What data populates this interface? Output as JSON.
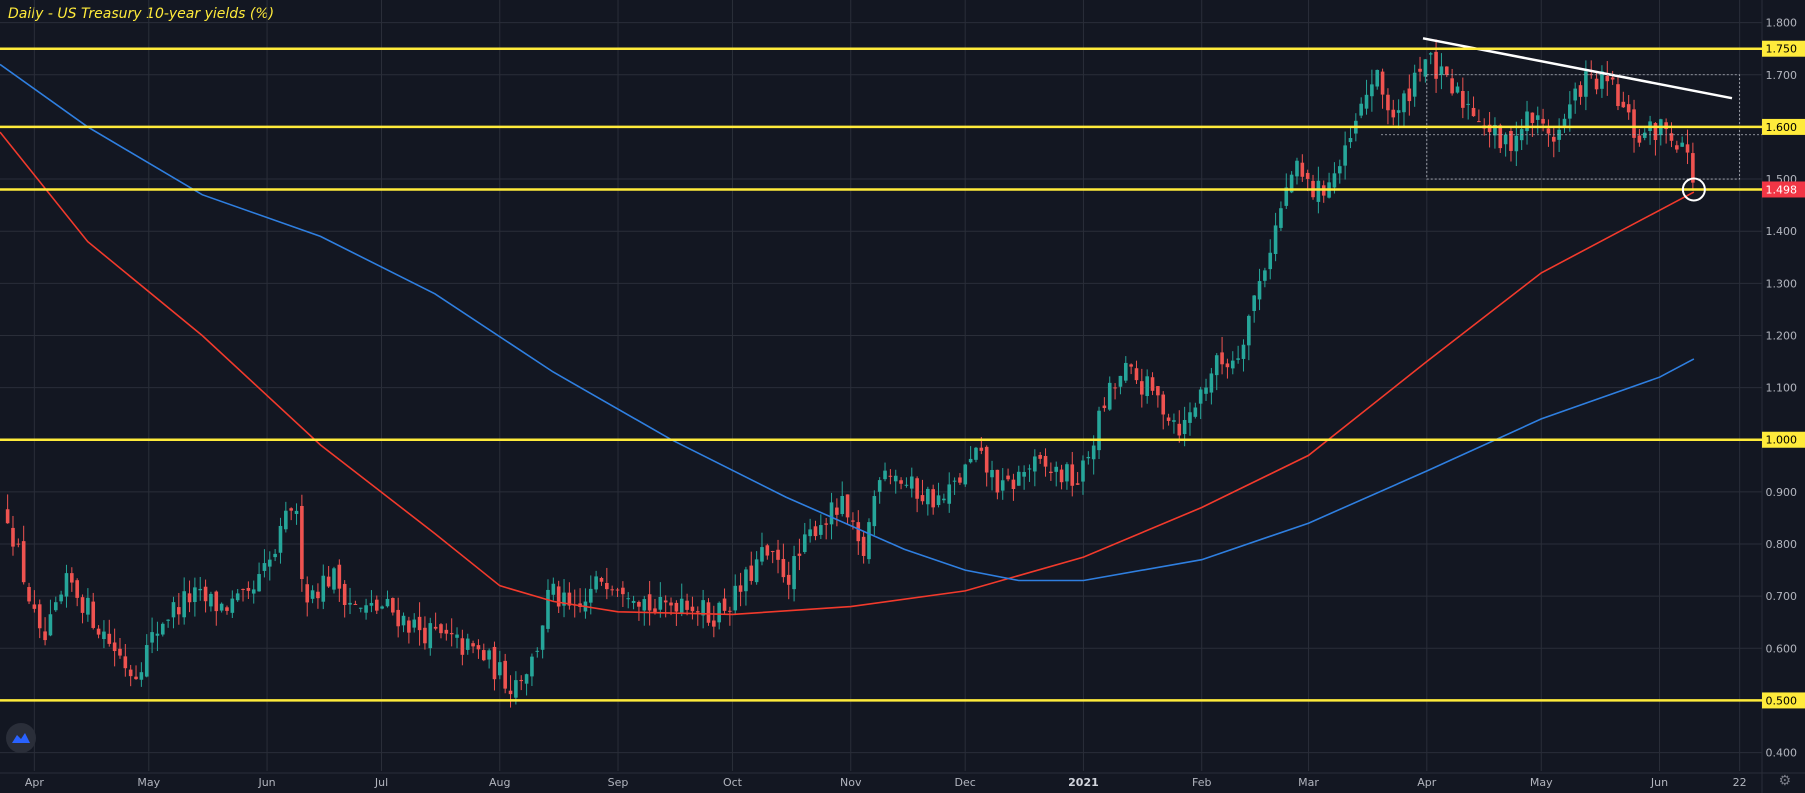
{
  "chart_data": {
    "type": "candlestick",
    "title": "Daily - US Treasury 10-year yields (%)",
    "ylim": [
      0.38,
      1.83
    ],
    "y_ticks": [
      0.4,
      0.5,
      0.6,
      0.7,
      0.8,
      0.9,
      1.0,
      1.1,
      1.2,
      1.3,
      1.4,
      1.5,
      1.6,
      1.7,
      1.8
    ],
    "y_tick_labels": [
      "0.400",
      "0.500",
      "0.600",
      "0.700",
      "0.800",
      "0.900",
      "1.000",
      "1.100",
      "1.200",
      "1.300",
      "1.400",
      "1.500",
      "1.600",
      "1.700",
      "1.800"
    ],
    "x_ticks": [
      "Apr",
      "May",
      "Jun",
      "Jul",
      "Aug",
      "Sep",
      "Oct",
      "Nov",
      "Dec",
      "2021",
      "Feb",
      "Mar",
      "Apr",
      "May",
      "Jun",
      "22"
    ],
    "x_tick_bold": [
      false,
      false,
      false,
      false,
      false,
      false,
      false,
      false,
      false,
      true,
      false,
      false,
      false,
      false,
      false,
      false
    ],
    "horizontal_levels": [
      {
        "value": 1.75,
        "label": "1.750"
      },
      {
        "value": 1.6,
        "label": "1.600"
      },
      {
        "value": 1.0,
        "label": "1.000"
      },
      {
        "value": 0.5,
        "label": "0.500"
      },
      {
        "value": 1.48,
        "label": ""
      }
    ],
    "last_price": {
      "value": 1.498,
      "label": "1.498"
    },
    "colors": {
      "background": "#131722",
      "grid": "#2a2e39",
      "level": "#ffeb3b",
      "up": "#26a69a",
      "down": "#ef5350",
      "ma_red": "#f23a2c",
      "ma_blue": "#2f7fe0",
      "trendline": "#ffffff",
      "last_price_tag": "#f23645"
    },
    "close_series": [
      {
        "date": "2020-03-25",
        "v": 0.86
      },
      {
        "date": "2020-04-03",
        "v": 0.6
      },
      {
        "date": "2020-04-10",
        "v": 0.73
      },
      {
        "date": "2020-04-20",
        "v": 0.62
      },
      {
        "date": "2020-04-27",
        "v": 0.55
      },
      {
        "date": "2020-05-05",
        "v": 0.66
      },
      {
        "date": "2020-05-12",
        "v": 0.7
      },
      {
        "date": "2020-05-20",
        "v": 0.68
      },
      {
        "date": "2020-05-27",
        "v": 0.69
      },
      {
        "date": "2020-06-03",
        "v": 0.78
      },
      {
        "date": "2020-06-08",
        "v": 0.89
      },
      {
        "date": "2020-06-11",
        "v": 0.7
      },
      {
        "date": "2020-06-18",
        "v": 0.74
      },
      {
        "date": "2020-06-25",
        "v": 0.67
      },
      {
        "date": "2020-07-02",
        "v": 0.68
      },
      {
        "date": "2020-07-10",
        "v": 0.64
      },
      {
        "date": "2020-07-20",
        "v": 0.61
      },
      {
        "date": "2020-07-27",
        "v": 0.59
      },
      {
        "date": "2020-08-04",
        "v": 0.53
      },
      {
        "date": "2020-08-10",
        "v": 0.58
      },
      {
        "date": "2020-08-14",
        "v": 0.71
      },
      {
        "date": "2020-08-21",
        "v": 0.66
      },
      {
        "date": "2020-08-28",
        "v": 0.74
      },
      {
        "date": "2020-09-04",
        "v": 0.72
      },
      {
        "date": "2020-09-11",
        "v": 0.67
      },
      {
        "date": "2020-09-18",
        "v": 0.7
      },
      {
        "date": "2020-09-25",
        "v": 0.66
      },
      {
        "date": "2020-10-02",
        "v": 0.7
      },
      {
        "date": "2020-10-09",
        "v": 0.78
      },
      {
        "date": "2020-10-16",
        "v": 0.74
      },
      {
        "date": "2020-10-23",
        "v": 0.84
      },
      {
        "date": "2020-10-30",
        "v": 0.87
      },
      {
        "date": "2020-11-04",
        "v": 0.77
      },
      {
        "date": "2020-11-09",
        "v": 0.96
      },
      {
        "date": "2020-11-16",
        "v": 0.91
      },
      {
        "date": "2020-11-25",
        "v": 0.88
      },
      {
        "date": "2020-12-04",
        "v": 0.97
      },
      {
        "date": "2020-12-11",
        "v": 0.9
      },
      {
        "date": "2020-12-18",
        "v": 0.95
      },
      {
        "date": "2020-12-24",
        "v": 0.94
      },
      {
        "date": "2020-12-31",
        "v": 0.92
      },
      {
        "date": "2021-01-07",
        "v": 1.08
      },
      {
        "date": "2021-01-12",
        "v": 1.13
      },
      {
        "date": "2021-01-19",
        "v": 1.09
      },
      {
        "date": "2021-01-27",
        "v": 1.02
      },
      {
        "date": "2021-02-04",
        "v": 1.14
      },
      {
        "date": "2021-02-10",
        "v": 1.16
      },
      {
        "date": "2021-02-16",
        "v": 1.3
      },
      {
        "date": "2021-02-25",
        "v": 1.52
      },
      {
        "date": "2021-03-03",
        "v": 1.47
      },
      {
        "date": "2021-03-10",
        "v": 1.53
      },
      {
        "date": "2021-03-18",
        "v": 1.7
      },
      {
        "date": "2021-03-24",
        "v": 1.61
      },
      {
        "date": "2021-03-31",
        "v": 1.74
      },
      {
        "date": "2021-04-07",
        "v": 1.67
      },
      {
        "date": "2021-04-14",
        "v": 1.63
      },
      {
        "date": "2021-04-21",
        "v": 1.56
      },
      {
        "date": "2021-04-28",
        "v": 1.62
      },
      {
        "date": "2021-05-05",
        "v": 1.58
      },
      {
        "date": "2021-05-12",
        "v": 1.69
      },
      {
        "date": "2021-05-19",
        "v": 1.68
      },
      {
        "date": "2021-05-26",
        "v": 1.58
      },
      {
        "date": "2021-06-02",
        "v": 1.6
      },
      {
        "date": "2021-06-07",
        "v": 1.57
      },
      {
        "date": "2021-06-10",
        "v": 1.498
      }
    ],
    "series": [
      {
        "key": "ma_red",
        "points": [
          {
            "date": "2020-03-23",
            "v": 1.59
          },
          {
            "date": "2020-04-15",
            "v": 1.38
          },
          {
            "date": "2020-05-15",
            "v": 1.2
          },
          {
            "date": "2020-06-15",
            "v": 0.99
          },
          {
            "date": "2020-07-15",
            "v": 0.82
          },
          {
            "date": "2020-08-01",
            "v": 0.72
          },
          {
            "date": "2020-08-15",
            "v": 0.69
          },
          {
            "date": "2020-09-01",
            "v": 0.67
          },
          {
            "date": "2020-10-01",
            "v": 0.665
          },
          {
            "date": "2020-11-01",
            "v": 0.68
          },
          {
            "date": "2020-12-01",
            "v": 0.71
          },
          {
            "date": "2021-01-01",
            "v": 0.775
          },
          {
            "date": "2021-02-01",
            "v": 0.87
          },
          {
            "date": "2021-03-01",
            "v": 0.97
          },
          {
            "date": "2021-04-01",
            "v": 1.15
          },
          {
            "date": "2021-05-01",
            "v": 1.32
          },
          {
            "date": "2021-06-01",
            "v": 1.44
          },
          {
            "date": "2021-06-10",
            "v": 1.475
          }
        ]
      },
      {
        "key": "ma_blue",
        "points": [
          {
            "date": "2020-03-23",
            "v": 1.72
          },
          {
            "date": "2020-04-15",
            "v": 1.6
          },
          {
            "date": "2020-05-15",
            "v": 1.47
          },
          {
            "date": "2020-06-15",
            "v": 1.39
          },
          {
            "date": "2020-07-15",
            "v": 1.28
          },
          {
            "date": "2020-08-15",
            "v": 1.13
          },
          {
            "date": "2020-09-15",
            "v": 1.0
          },
          {
            "date": "2020-10-15",
            "v": 0.89
          },
          {
            "date": "2020-11-15",
            "v": 0.79
          },
          {
            "date": "2020-12-01",
            "v": 0.75
          },
          {
            "date": "2020-12-15",
            "v": 0.73
          },
          {
            "date": "2021-01-01",
            "v": 0.73
          },
          {
            "date": "2021-02-01",
            "v": 0.77
          },
          {
            "date": "2021-03-01",
            "v": 0.84
          },
          {
            "date": "2021-04-01",
            "v": 0.94
          },
          {
            "date": "2021-05-01",
            "v": 1.04
          },
          {
            "date": "2021-06-01",
            "v": 1.12
          },
          {
            "date": "2021-06-10",
            "v": 1.155
          }
        ]
      },
      {
        "key": "trendline",
        "points": [
          {
            "date": "2021-03-31",
            "v": 1.77
          },
          {
            "date": "2021-06-20",
            "v": 1.655
          }
        ]
      }
    ]
  }
}
